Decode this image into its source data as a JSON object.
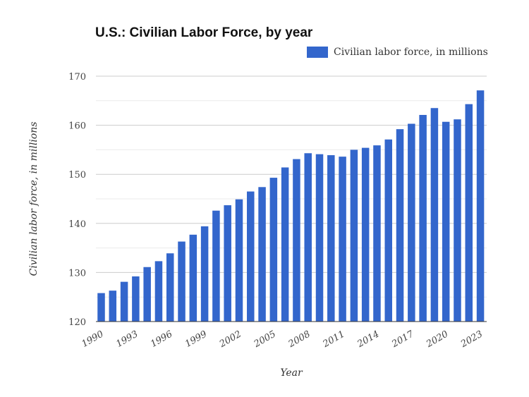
{
  "chart_data": {
    "type": "bar",
    "title": "U.S.: Civilian Labor Force, by year",
    "xlabel": "Year",
    "ylabel": "Civilian labor force, in millions",
    "ylim": [
      120,
      170
    ],
    "yticks": [
      "120",
      "130",
      "140",
      "150",
      "160",
      "170"
    ],
    "xticks": [
      "1990",
      "1993",
      "1996",
      "1999",
      "2002",
      "2005",
      "2008",
      "2011",
      "2014",
      "2017",
      "2020",
      "2023"
    ],
    "legend_position": "top-right",
    "grid": true,
    "color": "#3366cc",
    "categories": [
      "1990",
      "1991",
      "1992",
      "1993",
      "1994",
      "1995",
      "1996",
      "1997",
      "1998",
      "1999",
      "2000",
      "2001",
      "2002",
      "2003",
      "2004",
      "2005",
      "2006",
      "2007",
      "2008",
      "2009",
      "2010",
      "2011",
      "2012",
      "2013",
      "2014",
      "2015",
      "2016",
      "2017",
      "2018",
      "2019",
      "2020",
      "2021",
      "2022",
      "2023"
    ],
    "series": [
      {
        "name": "Civilian labor force, in millions",
        "values": [
          125.8,
          126.3,
          128.1,
          129.2,
          131.1,
          132.3,
          133.9,
          136.3,
          137.7,
          139.4,
          142.6,
          143.7,
          144.9,
          146.5,
          147.4,
          149.3,
          151.4,
          153.1,
          154.3,
          154.1,
          153.9,
          153.6,
          155.0,
          155.4,
          155.9,
          157.1,
          159.2,
          160.3,
          162.1,
          163.5,
          160.7,
          161.2,
          164.3,
          167.1
        ]
      }
    ]
  }
}
